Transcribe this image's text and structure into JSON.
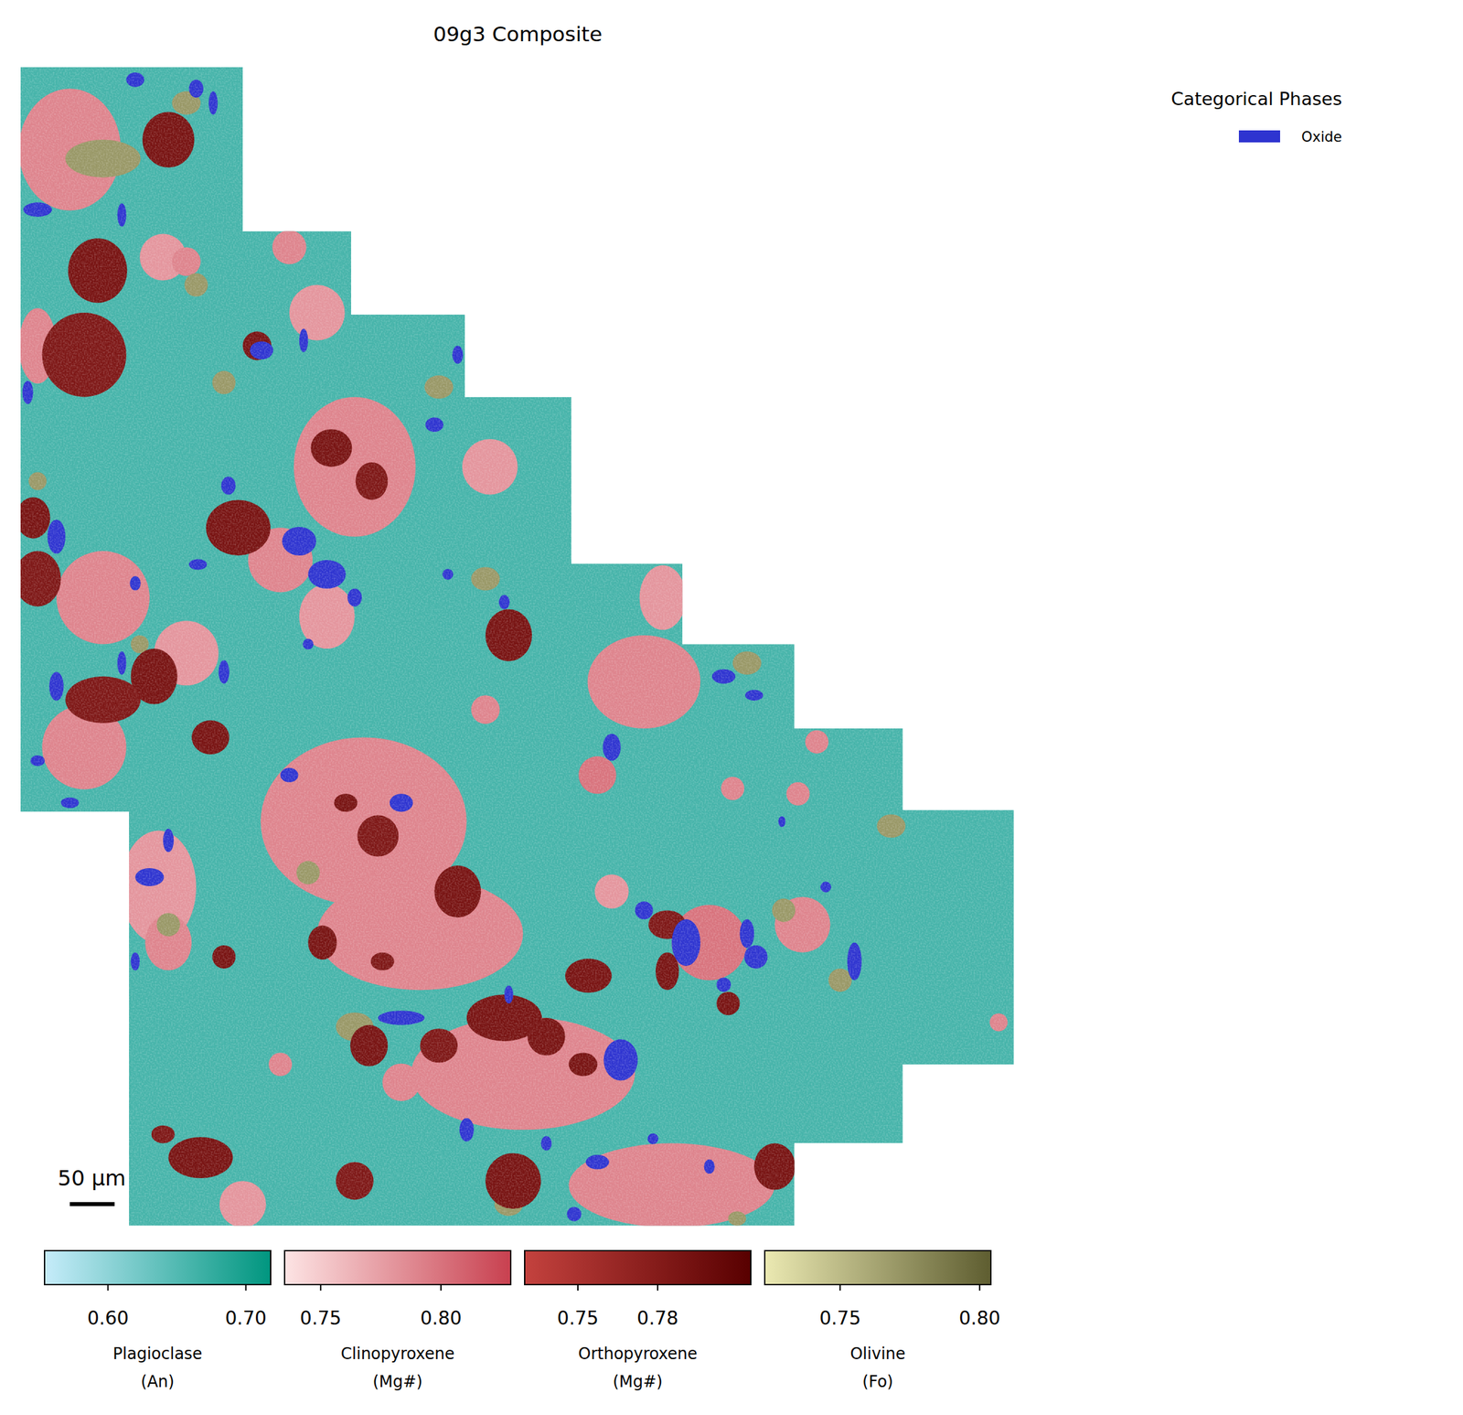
{
  "chart_data": {
    "type": "phase_map",
    "title": "09g3 Composite",
    "xlim": [
      0,
      1110
    ],
    "ylim": [
      0,
      1293
    ],
    "outline": [
      [
        0,
        0
      ],
      [
        248,
        0
      ],
      [
        248,
        183
      ],
      [
        369,
        183
      ],
      [
        369,
        276
      ],
      [
        496,
        276
      ],
      [
        496,
        368
      ],
      [
        615,
        368
      ],
      [
        615,
        554
      ],
      [
        739,
        554
      ],
      [
        739,
        644
      ],
      [
        864,
        644
      ],
      [
        864,
        738
      ],
      [
        985,
        738
      ],
      [
        985,
        829
      ],
      [
        1109,
        829
      ],
      [
        1109,
        1113
      ],
      [
        985,
        1113
      ],
      [
        985,
        1201
      ],
      [
        864,
        1201
      ],
      [
        864,
        1293
      ],
      [
        121,
        1293
      ],
      [
        121,
        831
      ],
      [
        0,
        831
      ]
    ],
    "phases": [
      {
        "name": "Plagioclase",
        "quantity": "(An)",
        "colors": [
          "#c6ecfa",
          "#00967f"
        ],
        "lim": [
          0.554,
          0.718
        ],
        "ticks": [
          {
            "value": 0.6,
            "label": "0.60"
          },
          {
            "value": 0.7,
            "label": "0.70"
          }
        ],
        "background": 0.66,
        "grains": []
      },
      {
        "name": "Clinopyroxene",
        "quantity": "(Mg#)",
        "colors": [
          "#fde4e4",
          "#c8404f"
        ],
        "lim": [
          0.735,
          0.829
        ],
        "ticks": [
          0.75,
          {
            "value": 0.8,
            "label": "0.80"
          }
        ],
        "grains": [
          [
            55,
            92,
            57,
            68,
            0.79
          ],
          [
            159,
            212,
            26,
            26,
            0.78
          ],
          [
            19,
            311,
            21,
            42,
            0.79
          ],
          [
            331,
            274,
            31,
            31,
            0.78
          ],
          [
            300,
            201,
            19,
            19,
            0.79
          ],
          [
            373,
            446,
            68,
            78,
            0.79
          ],
          [
            524,
            446,
            31,
            31,
            0.78
          ],
          [
            290,
            550,
            36,
            36,
            0.79
          ],
          [
            342,
            613,
            31,
            36,
            0.78
          ],
          [
            92,
            592,
            52,
            52,
            0.79
          ],
          [
            185,
            654,
            36,
            36,
            0.78
          ],
          [
            71,
            759,
            47,
            47,
            0.79
          ],
          [
            717,
            592,
            26,
            36,
            0.78
          ],
          [
            696,
            686,
            63,
            52,
            0.79
          ],
          [
            519,
            717,
            16,
            16,
            0.79
          ],
          [
            644,
            790,
            21,
            21,
            0.8
          ],
          [
            383,
            842,
            115,
            94,
            0.79
          ],
          [
            446,
            967,
            115,
            63,
            0.79
          ],
          [
            561,
            1123,
            125,
            63,
            0.79
          ],
          [
            727,
            1248,
            115,
            47,
            0.79
          ],
          [
            154,
            915,
            42,
            63,
            0.78
          ],
          [
            769,
            977,
            42,
            42,
            0.8
          ],
          [
            873,
            957,
            31,
            31,
            0.79
          ],
          [
            248,
            1269,
            26,
            26,
            0.78
          ],
          [
            868,
            811,
            13,
            13,
            0.79
          ],
          [
            889,
            753,
            13,
            13,
            0.79
          ],
          [
            795,
            805,
            13,
            13,
            0.79
          ],
          [
            660,
            920,
            19,
            19,
            0.78
          ],
          [
            1092,
            1066,
            10,
            10,
            0.79
          ],
          [
            290,
            1113,
            13,
            13,
            0.79
          ],
          [
            185,
            217,
            16,
            16,
            0.79
          ],
          [
            165,
            977,
            26,
            31,
            0.79
          ],
          [
            425,
            1133,
            21,
            21,
            0.79
          ]
        ]
      },
      {
        "name": "Orthopyroxene",
        "quantity": "(Mg#)",
        "colors": [
          "#c4423e",
          "#580000"
        ],
        "lim": [
          0.73,
          0.815
        ],
        "ticks": [
          0.75,
          0.78
        ],
        "grains": [
          [
            165,
            81,
            29,
            31,
            0.79
          ],
          [
            86,
            227,
            33,
            36,
            0.79
          ],
          [
            71,
            321,
            47,
            47,
            0.785
          ],
          [
            347,
            425,
            23,
            21,
            0.79
          ],
          [
            392,
            462,
            18,
            21,
            0.785
          ],
          [
            243,
            514,
            36,
            31,
            0.79
          ],
          [
            19,
            571,
            26,
            31,
            0.785
          ],
          [
            14,
            503,
            19,
            23,
            0.79
          ],
          [
            149,
            680,
            26,
            31,
            0.79
          ],
          [
            92,
            706,
            42,
            26,
            0.785
          ],
          [
            212,
            748,
            21,
            19,
            0.79
          ],
          [
            545,
            634,
            26,
            29,
            0.79
          ],
          [
            399,
            858,
            23,
            23,
            0.785
          ],
          [
            488,
            920,
            26,
            29,
            0.79
          ],
          [
            337,
            977,
            16,
            19,
            0.79
          ],
          [
            404,
            998,
            13,
            10,
            0.785
          ],
          [
            540,
            1061,
            42,
            26,
            0.79
          ],
          [
            587,
            1082,
            21,
            21,
            0.79
          ],
          [
            467,
            1092,
            21,
            19,
            0.785
          ],
          [
            628,
            1113,
            16,
            13,
            0.79
          ],
          [
            634,
            1014,
            26,
            19,
            0.79
          ],
          [
            722,
            957,
            21,
            16,
            0.785
          ],
          [
            722,
            1009,
            13,
            21,
            0.79
          ],
          [
            389,
            1092,
            21,
            23,
            0.79
          ],
          [
            201,
            1217,
            36,
            23,
            0.79
          ],
          [
            373,
            1243,
            21,
            21,
            0.785
          ],
          [
            550,
            1243,
            31,
            31,
            0.79
          ],
          [
            842,
            1227,
            23,
            26,
            0.79
          ],
          [
            227,
            993,
            13,
            13,
            0.79
          ],
          [
            159,
            1191,
            13,
            10,
            0.785
          ],
          [
            264,
            311,
            16,
            16,
            0.79
          ],
          [
            790,
            1045,
            13,
            13,
            0.79
          ],
          [
            363,
            821,
            13,
            10,
            0.79
          ]
        ]
      },
      {
        "name": "Olivine",
        "quantity": "(Fo)",
        "colors": [
          "#ebe9b2",
          "#5e5d30"
        ],
        "lim": [
          0.723,
          0.804
        ],
        "ticks": [
          0.75,
          {
            "value": 0.8,
            "label": "0.80"
          }
        ],
        "grains": [
          [
            92,
            102,
            42,
            21,
            0.77
          ],
          [
            185,
            40,
            16,
            13,
            0.77
          ],
          [
            467,
            357,
            16,
            13,
            0.77
          ],
          [
            196,
            243,
            13,
            13,
            0.77
          ],
          [
            519,
            571,
            16,
            13,
            0.77
          ],
          [
            811,
            665,
            16,
            13,
            0.77
          ],
          [
            972,
            847,
            16,
            13,
            0.77
          ],
          [
            373,
            1071,
            21,
            16,
            0.77
          ],
          [
            321,
            899,
            13,
            13,
            0.77
          ],
          [
            545,
            1269,
            16,
            13,
            0.77
          ],
          [
            852,
            941,
            13,
            13,
            0.77
          ],
          [
            227,
            352,
            13,
            13,
            0.77
          ],
          [
            19,
            462,
            10,
            10,
            0.77
          ],
          [
            133,
            644,
            10,
            10,
            0.77
          ],
          [
            915,
            1019,
            13,
            13,
            0.77
          ],
          [
            165,
            957,
            13,
            13,
            0.77
          ],
          [
            800,
            1285,
            10,
            8,
            0.77
          ]
        ]
      }
    ],
    "categorical": {
      "title": "Categorical Phases",
      "name": "Oxide",
      "color": "#2e34d0",
      "grains": [
        [
          128,
          14,
          10,
          8
        ],
        [
          196,
          24,
          8,
          10
        ],
        [
          215,
          40,
          5,
          13
        ],
        [
          19,
          159,
          16,
          8
        ],
        [
          113,
          165,
          5,
          13
        ],
        [
          269,
          316,
          13,
          10
        ],
        [
          316,
          305,
          5,
          13
        ],
        [
          462,
          399,
          10,
          8
        ],
        [
          488,
          321,
          6,
          10
        ],
        [
          8,
          363,
          6,
          13
        ],
        [
          40,
          524,
          10,
          19
        ],
        [
          232,
          467,
          8,
          10
        ],
        [
          311,
          529,
          19,
          16
        ],
        [
          342,
          566,
          21,
          16
        ],
        [
          373,
          592,
          8,
          10
        ],
        [
          198,
          555,
          10,
          6
        ],
        [
          128,
          576,
          6,
          8
        ],
        [
          321,
          644,
          6,
          6
        ],
        [
          540,
          597,
          6,
          8
        ],
        [
          40,
          691,
          8,
          16
        ],
        [
          113,
          665,
          5,
          13
        ],
        [
          227,
          675,
          6,
          13
        ],
        [
          19,
          774,
          8,
          6
        ],
        [
          55,
          821,
          10,
          6
        ],
        [
          660,
          759,
          10,
          15
        ],
        [
          785,
          680,
          13,
          8
        ],
        [
          819,
          701,
          10,
          6
        ],
        [
          425,
          821,
          13,
          10
        ],
        [
          300,
          790,
          10,
          8
        ],
        [
          165,
          863,
          6,
          13
        ],
        [
          144,
          904,
          16,
          10
        ],
        [
          128,
          998,
          5,
          10
        ],
        [
          696,
          941,
          10,
          10
        ],
        [
          743,
          977,
          16,
          26
        ],
        [
          811,
          967,
          8,
          16
        ],
        [
          821,
          993,
          13,
          13
        ],
        [
          899,
          915,
          6,
          6
        ],
        [
          931,
          998,
          8,
          21
        ],
        [
          425,
          1061,
          26,
          8
        ],
        [
          498,
          1186,
          8,
          13
        ],
        [
          670,
          1108,
          19,
          23
        ],
        [
          644,
          1222,
          13,
          8
        ],
        [
          706,
          1196,
          6,
          6
        ],
        [
          769,
          1227,
          6,
          8
        ],
        [
          618,
          1280,
          8,
          8
        ],
        [
          545,
          1035,
          5,
          10
        ],
        [
          587,
          1201,
          6,
          8
        ],
        [
          785,
          1024,
          8,
          8
        ],
        [
          477,
          566,
          6,
          6
        ],
        [
          850,
          842,
          4,
          6
        ]
      ]
    },
    "scale_bar": {
      "value": 50,
      "label": "50 μm"
    }
  }
}
